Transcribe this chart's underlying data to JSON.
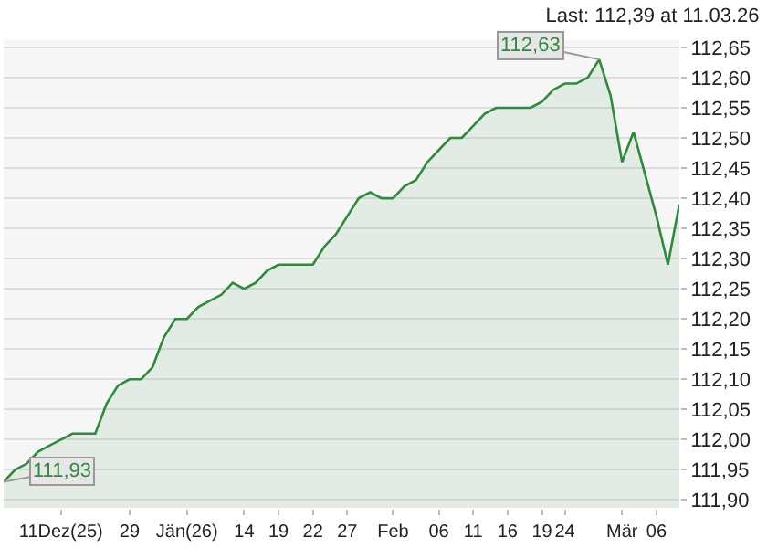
{
  "chart_data": {
    "type": "area",
    "title": "Last: 112,39 at 11.03.26",
    "categories": [
      null,
      null,
      null,
      null,
      null,
      "11Dez(25)",
      null,
      null,
      null,
      null,
      null,
      "29",
      null,
      null,
      null,
      null,
      "Jän(26)",
      null,
      null,
      null,
      null,
      "14",
      null,
      null,
      "19",
      null,
      null,
      "22",
      null,
      null,
      "27",
      null,
      null,
      null,
      "Feb",
      null,
      null,
      null,
      "06",
      null,
      null,
      "11",
      null,
      null,
      "16",
      null,
      null,
      "19",
      null,
      "24",
      null,
      null,
      null,
      null,
      "Mär",
      null,
      null,
      "06",
      null,
      null
    ],
    "series": [
      {
        "color": "#2e8b3c",
        "values": [
          111.93,
          111.95,
          111.96,
          111.98,
          111.99,
          112.0,
          112.01,
          112.01,
          112.01,
          112.06,
          112.09,
          112.1,
          112.1,
          112.12,
          112.17,
          112.2,
          112.2,
          112.22,
          112.23,
          112.24,
          112.26,
          112.25,
          112.26,
          112.28,
          112.29,
          112.29,
          112.29,
          112.29,
          112.32,
          112.34,
          112.37,
          112.4,
          112.41,
          112.4,
          112.4,
          112.42,
          112.43,
          112.46,
          112.48,
          112.5,
          112.5,
          112.52,
          112.54,
          112.55,
          112.55,
          112.55,
          112.55,
          112.56,
          112.58,
          112.59,
          112.59,
          112.6,
          112.63,
          112.57,
          112.46,
          112.51,
          112.44,
          112.37,
          112.29,
          112.39
        ]
      }
    ],
    "ylim": [
      111.887,
      112.662
    ],
    "yticks": [
      {
        "value": 111.9,
        "label": "111,90"
      },
      {
        "value": 111.95,
        "label": "111,95"
      },
      {
        "value": 112.0,
        "label": "112,00"
      },
      {
        "value": 112.05,
        "label": "112,05"
      },
      {
        "value": 112.1,
        "label": "112,10"
      },
      {
        "value": 112.15,
        "label": "112,15"
      },
      {
        "value": 112.2,
        "label": "112,20"
      },
      {
        "value": 112.25,
        "label": "112,25"
      },
      {
        "value": 112.3,
        "label": "112,30"
      },
      {
        "value": 112.35,
        "label": "112,35"
      },
      {
        "value": 112.4,
        "label": "112,40"
      },
      {
        "value": 112.45,
        "label": "112,45"
      },
      {
        "value": 112.5,
        "label": "112,50"
      },
      {
        "value": 112.55,
        "label": "112,55"
      },
      {
        "value": 112.6,
        "label": "112,60"
      },
      {
        "value": 112.65,
        "label": "112,65"
      }
    ],
    "grid": "y",
    "annotations": [
      "112,63",
      "111,93"
    ]
  }
}
